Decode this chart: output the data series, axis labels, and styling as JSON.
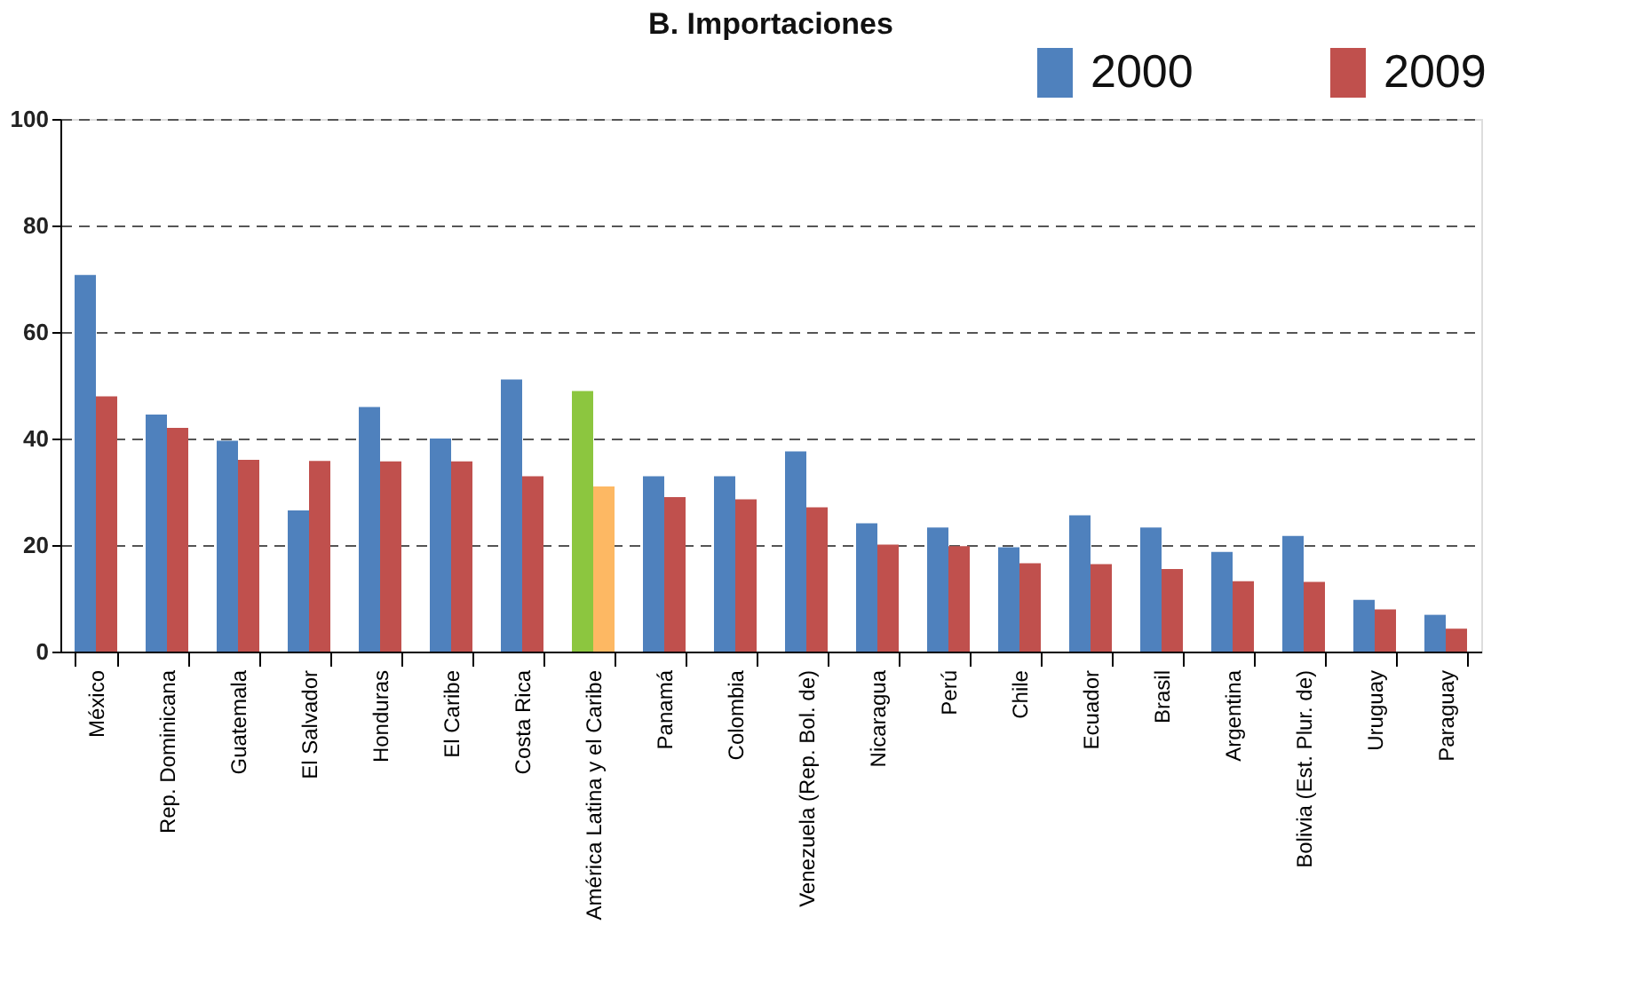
{
  "chart_data": {
    "type": "bar",
    "title": "B. Importaciones",
    "categories": [
      "México",
      "Rep. Dominicana",
      "Guatemala",
      "El Salvador",
      "Honduras",
      "El Caribe",
      "Costa Rica",
      "América Latina y el Caribe",
      "Panamá",
      "Colombia",
      "Venezuela (Rep. Bol. de)",
      "Nicaragua",
      "Perú",
      "Chile",
      "Ecuador",
      "Brasil",
      "Argentina",
      "Bolivia (Est. Plur. de)",
      "Uruguay",
      "Paraguay"
    ],
    "series": [
      {
        "name": "2000",
        "color": "#4f81bd",
        "colors": [
          "#4f81bd",
          "#4f81bd",
          "#4f81bd",
          "#4f81bd",
          "#4f81bd",
          "#4f81bd",
          "#4f81bd",
          "#8cc63f",
          "#4f81bd",
          "#4f81bd",
          "#4f81bd",
          "#4f81bd",
          "#4f81bd",
          "#4f81bd",
          "#4f81bd",
          "#4f81bd",
          "#4f81bd",
          "#4f81bd",
          "#4f81bd",
          "#4f81bd"
        ],
        "values": [
          70.7,
          44.5,
          39.6,
          26.5,
          45.9,
          40.0,
          51.1,
          48.9,
          32.9,
          32.9,
          37.6,
          24.1,
          23.3,
          19.6,
          25.6,
          23.3,
          18.7,
          21.7,
          9.7,
          6.9
        ]
      },
      {
        "name": "2009",
        "color": "#c0504d",
        "colors": [
          "#c0504d",
          "#c0504d",
          "#c0504d",
          "#c0504d",
          "#c0504d",
          "#c0504d",
          "#c0504d",
          "#fdb863",
          "#c0504d",
          "#c0504d",
          "#c0504d",
          "#c0504d",
          "#c0504d",
          "#c0504d",
          "#c0504d",
          "#c0504d",
          "#c0504d",
          "#c0504d",
          "#c0504d",
          "#c0504d"
        ],
        "values": [
          47.9,
          42.0,
          36.0,
          35.8,
          35.7,
          35.7,
          32.9,
          31.0,
          29.0,
          28.6,
          27.1,
          20.1,
          19.8,
          16.6,
          16.4,
          15.5,
          13.2,
          13.1,
          7.9,
          4.3
        ]
      }
    ],
    "ylim": [
      0,
      100
    ],
    "yticks": [
      0,
      20,
      40,
      60,
      80,
      100
    ],
    "grid": "y",
    "legend": "top right"
  }
}
